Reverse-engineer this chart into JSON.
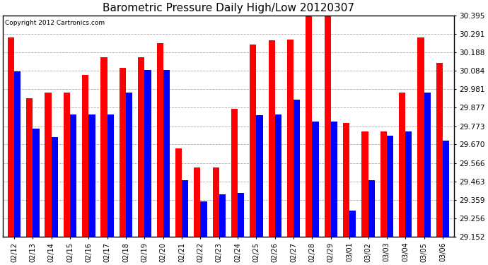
{
  "title": "Barometric Pressure Daily High/Low 20120307",
  "copyright": "Copyright 2012 Cartronics.com",
  "dates": [
    "02/12",
    "02/13",
    "02/14",
    "02/15",
    "02/16",
    "02/17",
    "02/18",
    "02/19",
    "02/20",
    "02/21",
    "02/22",
    "02/23",
    "02/24",
    "02/25",
    "02/26",
    "02/27",
    "02/28",
    "02/29",
    "03/01",
    "03/02",
    "03/03",
    "03/04",
    "03/05",
    "03/06"
  ],
  "highs": [
    30.27,
    29.93,
    29.96,
    29.96,
    30.06,
    30.16,
    30.1,
    30.16,
    30.24,
    29.65,
    29.54,
    29.54,
    29.87,
    30.23,
    30.255,
    30.26,
    30.4,
    30.4,
    29.79,
    29.745,
    29.745,
    29.96,
    30.27,
    30.13
  ],
  "lows": [
    30.08,
    29.76,
    29.71,
    29.84,
    29.84,
    29.84,
    29.96,
    30.09,
    30.09,
    29.47,
    29.35,
    29.39,
    29.4,
    29.835,
    29.84,
    29.92,
    29.8,
    29.8,
    29.3,
    29.47,
    29.72,
    29.745,
    29.96,
    29.69
  ],
  "ymin": 29.152,
  "ymax": 30.395,
  "yticks": [
    29.152,
    29.256,
    29.359,
    29.463,
    29.566,
    29.67,
    29.773,
    29.877,
    29.981,
    30.084,
    30.188,
    30.291,
    30.395
  ],
  "bar_color_high": "#ff0000",
  "bar_color_low": "#0000ff",
  "bg_color": "#ffffff",
  "grid_color": "#888888",
  "title_fontsize": 11,
  "copyright_fontsize": 6.5,
  "ytick_fontsize": 7.5,
  "xtick_fontsize": 7.0
}
